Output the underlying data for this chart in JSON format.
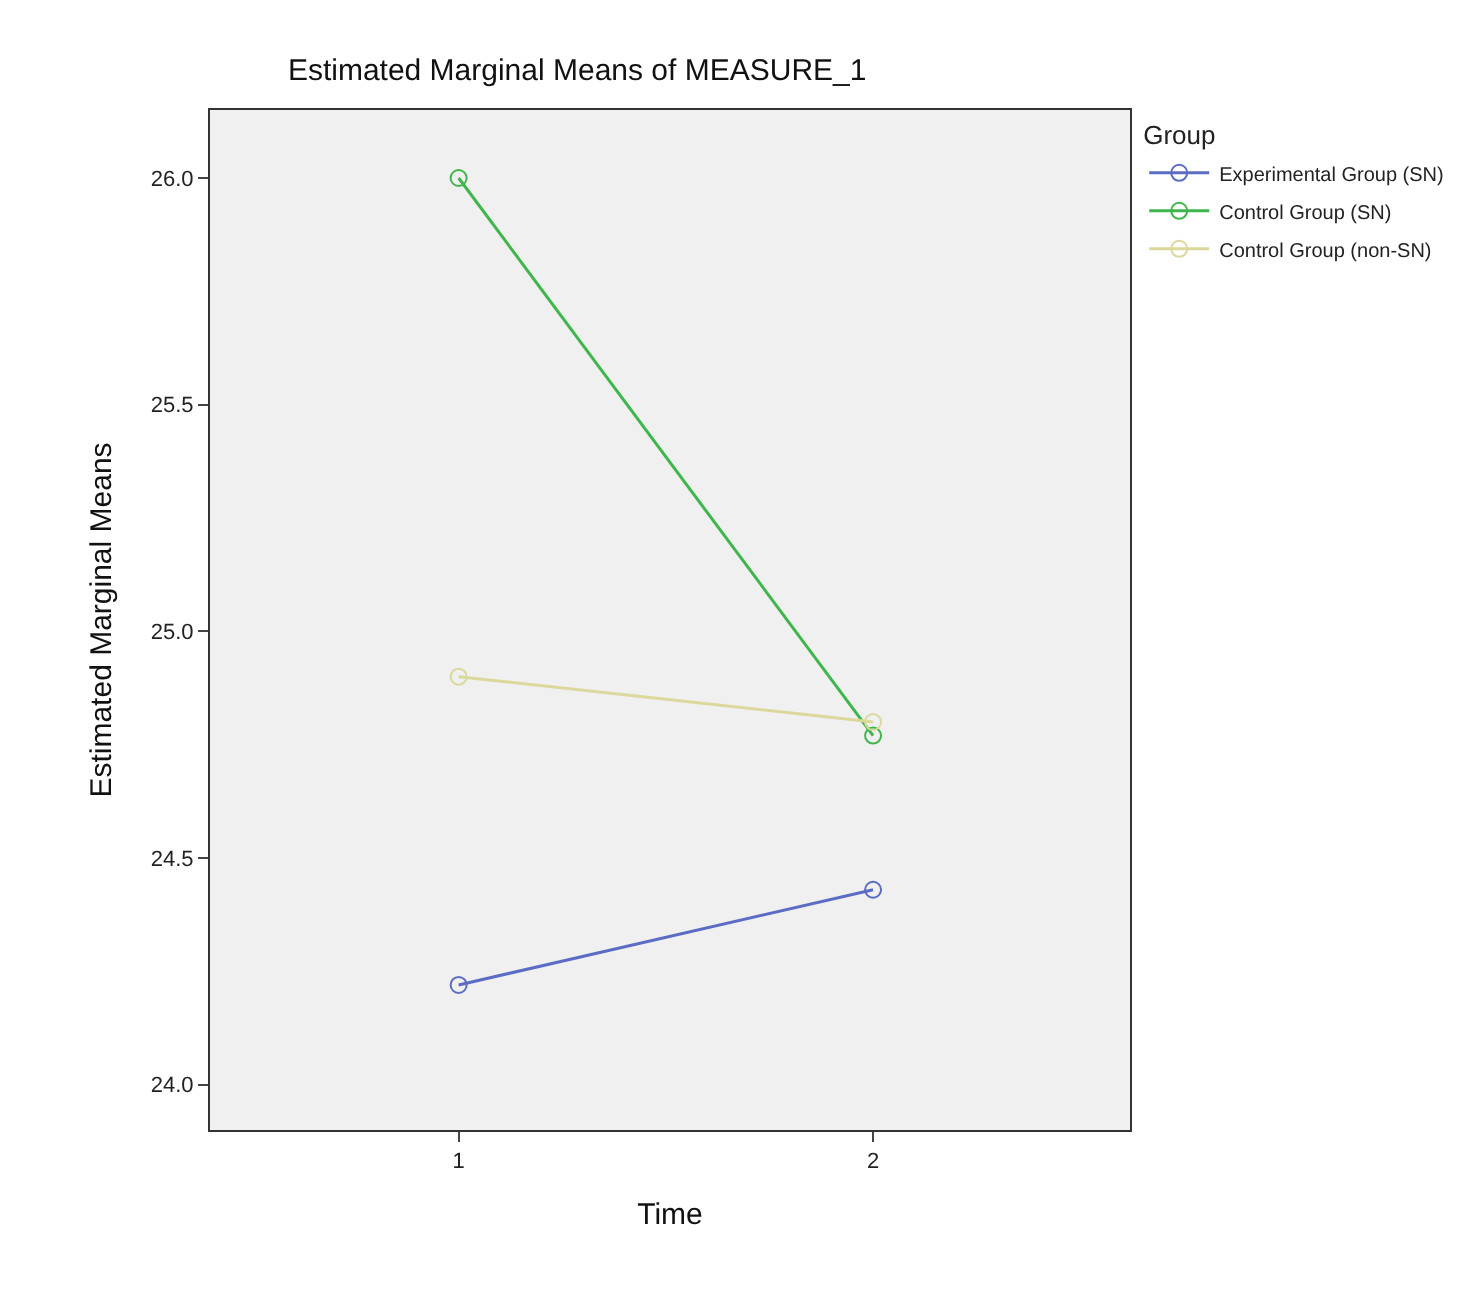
{
  "chart_data": {
    "type": "line",
    "title": "Estimated Marginal Means of MEASURE_1",
    "xlabel": "Time",
    "ylabel": "Estimated Marginal Means",
    "legend_title": "Group",
    "categories": [
      "1",
      "2"
    ],
    "series": [
      {
        "name": "Experimental Group (SN)",
        "color": "#5b6cc4",
        "values": [
          24.22,
          24.43
        ]
      },
      {
        "name": "Control Group (SN)",
        "color": "#3fb64c",
        "values": [
          26.0,
          24.77
        ]
      },
      {
        "name": "Control Group (non-SN)",
        "color": "#dcd89c",
        "values": [
          24.9,
          24.8
        ]
      }
    ],
    "ylim": [
      23.9,
      26.15
    ],
    "yticks": [
      {
        "value": 24.0,
        "label": "24.0"
      },
      {
        "value": 24.5,
        "label": "24.5"
      },
      {
        "value": 25.0,
        "label": "25.0"
      },
      {
        "value": 25.5,
        "label": "25.5"
      },
      {
        "value": 26.0,
        "label": "26.0"
      }
    ],
    "grid": false,
    "legend": "top right",
    "marker": "circle",
    "line_style": "solid"
  }
}
